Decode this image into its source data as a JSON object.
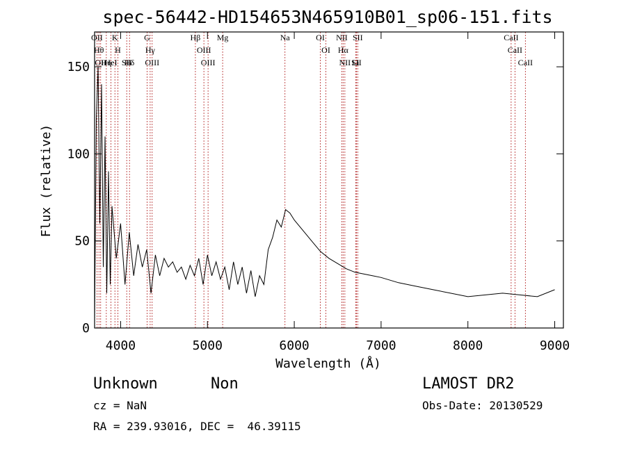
{
  "chart_data": {
    "type": "line",
    "title": "spec-56442-HD154653N465910B01_sp06-151.fits",
    "xlabel": "Wavelength (Å)",
    "ylabel": "Flux (relative)",
    "xlim": [
      3700,
      9100
    ],
    "ylim": [
      0,
      170
    ],
    "xticks": [
      4000,
      5000,
      6000,
      7000,
      8000,
      9000
    ],
    "yticks": [
      0,
      50,
      100,
      150
    ],
    "grid": false,
    "series": [
      {
        "x": [
          3700,
          3720,
          3740,
          3760,
          3780,
          3800,
          3820,
          3840,
          3860,
          3880,
          3900,
          3950,
          4000,
          4050,
          4100,
          4150,
          4200,
          4250,
          4300,
          4350,
          4400,
          4450,
          4500,
          4550,
          4600,
          4650,
          4700,
          4750,
          4800,
          4850,
          4900,
          4950,
          5000,
          5050,
          5100,
          5150,
          5200,
          5250,
          5300,
          5350,
          5400,
          5450,
          5500,
          5550,
          5600,
          5650,
          5700,
          5750,
          5800,
          5850,
          5900,
          5950,
          6000,
          6100,
          6200,
          6300,
          6400,
          6500,
          6600,
          6700,
          6800,
          6900,
          7000,
          7200,
          7400,
          7600,
          7800,
          8000,
          8200,
          8400,
          8600,
          8800,
          9000
        ],
        "y": [
          5,
          120,
          150,
          60,
          140,
          35,
          110,
          20,
          90,
          25,
          70,
          40,
          60,
          25,
          55,
          30,
          48,
          35,
          45,
          20,
          42,
          30,
          40,
          35,
          38,
          32,
          35,
          28,
          36,
          30,
          40,
          25,
          42,
          30,
          38,
          28,
          35,
          22,
          38,
          25,
          35,
          20,
          33,
          18,
          30,
          25,
          45,
          52,
          62,
          58,
          68,
          66,
          62,
          56,
          50,
          44,
          40,
          37,
          34,
          32,
          31,
          30,
          29,
          26,
          24,
          22,
          20,
          18,
          19,
          20,
          19,
          18,
          22
        ]
      }
    ],
    "line_markers": [
      {
        "label": "OII",
        "x": 3727
      },
      {
        "label": "Hθ",
        "x": 3750
      },
      {
        "label": "OII",
        "x": 3770
      },
      {
        "label": "Hη",
        "x": 3835
      },
      {
        "label": "K",
        "x": 3934
      },
      {
        "label": "H",
        "x": 3968
      },
      {
        "label": "HeI",
        "x": 3888
      },
      {
        "label": "SII",
        "x": 4070
      },
      {
        "label": "Hδ",
        "x": 4102
      },
      {
        "label": "G",
        "x": 4305
      },
      {
        "label": "Hγ",
        "x": 4340
      },
      {
        "label": "OIII",
        "x": 4363
      },
      {
        "label": "Hβ",
        "x": 4861
      },
      {
        "label": "OIII",
        "x": 4959
      },
      {
        "label": "OIII",
        "x": 5007
      },
      {
        "label": "Mg",
        "x": 5175
      },
      {
        "label": "Na",
        "x": 5893
      },
      {
        "label": "OI",
        "x": 6300
      },
      {
        "label": "OI",
        "x": 6364
      },
      {
        "label": "NII",
        "x": 6548
      },
      {
        "label": "Hα",
        "x": 6563
      },
      {
        "label": "NII",
        "x": 6583
      },
      {
        "label": "Li",
        "x": 6707
      },
      {
        "label": "SII",
        "x": 6716
      },
      {
        "label": "SII",
        "x": 6731
      },
      {
        "label": "CaII",
        "x": 8498
      },
      {
        "label": "CaII",
        "x": 8542
      },
      {
        "label": "CaII",
        "x": 8662
      }
    ],
    "colors": {
      "spectrum": "#000000",
      "line_markers": "#b22222"
    }
  },
  "info": {
    "object_class": "Unknown",
    "subclass": "Non",
    "cz": "cz = NaN",
    "coords": "RA = 239.93016, DEC =  46.39115",
    "survey": "LAMOST DR2",
    "obs_date": "Obs-Date: 20130529"
  }
}
